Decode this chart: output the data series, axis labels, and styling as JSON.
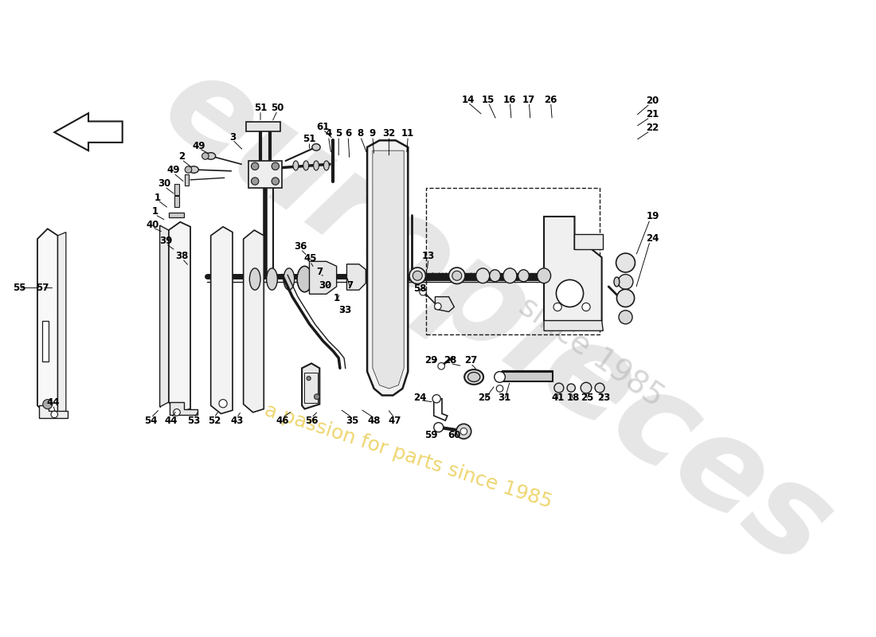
{
  "bg_color": "#ffffff",
  "lc": "#1a1a1a",
  "fig_width": 11.0,
  "fig_height": 8.0,
  "dpi": 100,
  "wm1": "europieces",
  "wm2": "a passion for parts since 1985"
}
